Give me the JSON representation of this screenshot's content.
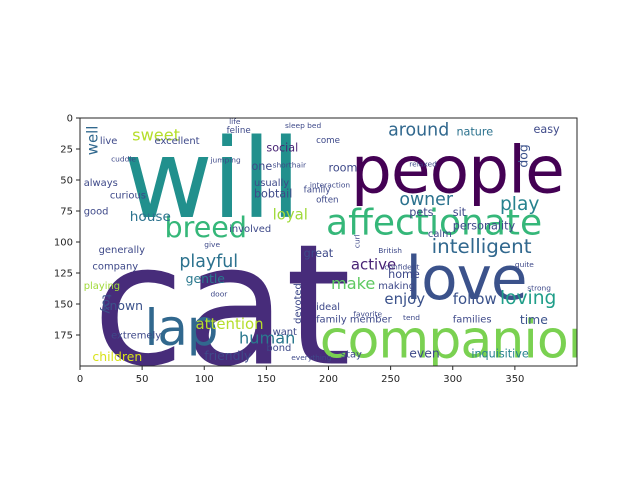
{
  "chart_data": {
    "type": "wordcloud",
    "title": "",
    "xlabel": "",
    "ylabel": "",
    "xlim": [
      0,
      400
    ],
    "ylim": [
      200,
      0
    ],
    "x_ticks": [
      0,
      50,
      100,
      150,
      200,
      250,
      300,
      350
    ],
    "y_ticks": [
      0,
      25,
      50,
      75,
      100,
      125,
      150,
      175
    ],
    "grid": false,
    "colormap": "viridis",
    "words": [
      {
        "text": "cat",
        "x": 10,
        "y": 198,
        "size": 135,
        "rot": 0,
        "color": "#472c7a"
      },
      {
        "text": "will",
        "x": 35,
        "y": 80,
        "size": 88,
        "rot": 0,
        "color": "#21908d"
      },
      {
        "text": "people",
        "x": 218,
        "y": 60,
        "size": 52,
        "rot": 0,
        "color": "#440154"
      },
      {
        "text": "companion",
        "x": 193,
        "y": 193,
        "size": 42,
        "rot": 0,
        "color": "#7ad151"
      },
      {
        "text": "love",
        "x": 262,
        "y": 146,
        "size": 48,
        "rot": 0,
        "color": "#3b528b"
      },
      {
        "text": "affectionate",
        "x": 198,
        "y": 94,
        "size": 29,
        "rot": 0,
        "color": "#35b779"
      },
      {
        "text": "lap",
        "x": 52,
        "y": 183,
        "size": 40,
        "rot": 0,
        "color": "#31688e"
      },
      {
        "text": "breed",
        "x": 68,
        "y": 96,
        "size": 23,
        "rot": 0,
        "color": "#35b779"
      },
      {
        "text": "intelligent",
        "x": 283,
        "y": 109,
        "size": 16,
        "rot": 0,
        "color": "#31688e"
      },
      {
        "text": "owner",
        "x": 257,
        "y": 70,
        "size": 14,
        "rot": 0,
        "color": "#2c728e"
      },
      {
        "text": "play",
        "x": 338,
        "y": 74,
        "size": 15,
        "rot": 0,
        "color": "#26828e"
      },
      {
        "text": "loving",
        "x": 338,
        "y": 150,
        "size": 15,
        "rot": 0,
        "color": "#1f9e89"
      },
      {
        "text": "around",
        "x": 248,
        "y": 14,
        "size": 14,
        "rot": 0,
        "color": "#31688e"
      },
      {
        "text": "sweet",
        "x": 42,
        "y": 18,
        "size": 13,
        "rot": 0,
        "color": "#b5de2b"
      },
      {
        "text": "human",
        "x": 128,
        "y": 182,
        "size": 13,
        "rot": 0,
        "color": "#2a788e"
      },
      {
        "text": "attention",
        "x": 93,
        "y": 170,
        "size": 12,
        "rot": 0,
        "color": "#b5de2b"
      },
      {
        "text": "playful",
        "x": 80,
        "y": 120,
        "size": 14,
        "rot": 0,
        "color": "#2c728e"
      },
      {
        "text": "make",
        "x": 202,
        "y": 138,
        "size": 13,
        "rot": 0,
        "color": "#5ec962"
      },
      {
        "text": "enjoy",
        "x": 245,
        "y": 150,
        "size": 12,
        "rot": 0,
        "color": "#3b528b"
      },
      {
        "text": "follow",
        "x": 300,
        "y": 150,
        "size": 12,
        "rot": 0,
        "color": "#3b528b"
      },
      {
        "text": "active",
        "x": 218,
        "y": 122,
        "size": 12,
        "rot": 0,
        "color": "#482475"
      },
      {
        "text": "loyal",
        "x": 155,
        "y": 82,
        "size": 12,
        "rot": 0,
        "color": "#a0da39"
      },
      {
        "text": "house",
        "x": 40,
        "y": 83,
        "size": 11,
        "rot": 0,
        "color": "#2c728e"
      },
      {
        "text": "gentle",
        "x": 85,
        "y": 133,
        "size": 10,
        "rot": 0,
        "color": "#2a788e"
      },
      {
        "text": "time",
        "x": 354,
        "y": 166,
        "size": 10,
        "rot": 0,
        "color": "#3b528b"
      },
      {
        "text": "children",
        "x": 10,
        "y": 196,
        "size": 10,
        "rot": 0,
        "color": "#d8e219"
      },
      {
        "text": "friendly",
        "x": 100,
        "y": 195,
        "size": 10,
        "rot": 0,
        "color": "#3e4989"
      },
      {
        "text": "even",
        "x": 265,
        "y": 193,
        "size": 10,
        "rot": 0,
        "color": "#3e4989"
      },
      {
        "text": "inquisitive",
        "x": 315,
        "y": 193,
        "size": 9,
        "rot": 0,
        "color": "#26828e"
      },
      {
        "text": "nature",
        "x": 303,
        "y": 14,
        "size": 9,
        "rot": 0,
        "color": "#2c728e"
      },
      {
        "text": "known",
        "x": 18,
        "y": 155,
        "size": 10,
        "rot": 0,
        "color": "#3b528b"
      },
      {
        "text": "toy",
        "x": 18,
        "y": 142,
        "size": 10,
        "rot": 90,
        "color": "#3b528b"
      },
      {
        "text": "well",
        "x": 14,
        "y": 30,
        "size": 12,
        "rot": 270,
        "color": "#31688e"
      },
      {
        "text": "dog",
        "x": 360,
        "y": 40,
        "size": 10,
        "rot": 270,
        "color": "#3b528b"
      },
      {
        "text": "easy",
        "x": 365,
        "y": 12,
        "size": 9,
        "rot": 0,
        "color": "#3e4989"
      },
      {
        "text": "room",
        "x": 200,
        "y": 43,
        "size": 9,
        "rot": 0,
        "color": "#3e4989"
      },
      {
        "text": "social",
        "x": 150,
        "y": 27,
        "size": 9,
        "rot": 0,
        "color": "#482475"
      },
      {
        "text": "one",
        "x": 138,
        "y": 42,
        "size": 9,
        "rot": 0,
        "color": "#3e4989"
      },
      {
        "text": "bobtail",
        "x": 140,
        "y": 64,
        "size": 9,
        "rot": 0,
        "color": "#3e4989"
      },
      {
        "text": "usually",
        "x": 140,
        "y": 55,
        "size": 8,
        "rot": 0,
        "color": "#3e4989"
      },
      {
        "text": "curious",
        "x": 24,
        "y": 65,
        "size": 8,
        "rot": 0,
        "color": "#3e4989"
      },
      {
        "text": "always",
        "x": 3,
        "y": 55,
        "size": 8,
        "rot": 0,
        "color": "#3e4989"
      },
      {
        "text": "live",
        "x": 16,
        "y": 21,
        "size": 8,
        "rot": 0,
        "color": "#3e4989"
      },
      {
        "text": "excellent",
        "x": 60,
        "y": 21,
        "size": 8,
        "rot": 0,
        "color": "#3e4989"
      },
      {
        "text": "good",
        "x": 3,
        "y": 78,
        "size": 8,
        "rot": 0,
        "color": "#3e4989"
      },
      {
        "text": "generally",
        "x": 15,
        "y": 109,
        "size": 8,
        "rot": 0,
        "color": "#3e4989"
      },
      {
        "text": "company",
        "x": 10,
        "y": 122,
        "size": 8,
        "rot": 0,
        "color": "#3e4989"
      },
      {
        "text": "playing",
        "x": 3,
        "y": 138,
        "size": 8,
        "rot": 0,
        "color": "#a0da39"
      },
      {
        "text": "extremely",
        "x": 25,
        "y": 178,
        "size": 8,
        "rot": 0,
        "color": "#3e4989"
      },
      {
        "text": "devoted",
        "x": 178,
        "y": 166,
        "size": 8,
        "rot": 270,
        "color": "#3e4989"
      },
      {
        "text": "great",
        "x": 180,
        "y": 112,
        "size": 9,
        "rot": 0,
        "color": "#3e4989"
      },
      {
        "text": "pets",
        "x": 265,
        "y": 79,
        "size": 9,
        "rot": 0,
        "color": "#3e4989"
      },
      {
        "text": "sit",
        "x": 300,
        "y": 79,
        "size": 9,
        "rot": 0,
        "color": "#3e4989"
      },
      {
        "text": "personality",
        "x": 300,
        "y": 90,
        "size": 9,
        "rot": 0,
        "color": "#3e4989"
      },
      {
        "text": "calm",
        "x": 280,
        "y": 96,
        "size": 8,
        "rot": 0,
        "color": "#3e4989"
      },
      {
        "text": "home",
        "x": 248,
        "y": 129,
        "size": 9,
        "rot": 0,
        "color": "#3e4989"
      },
      {
        "text": "making",
        "x": 240,
        "y": 138,
        "size": 8,
        "rot": 0,
        "color": "#3e4989"
      },
      {
        "text": "family member",
        "x": 190,
        "y": 165,
        "size": 8,
        "rot": 0,
        "color": "#3e4989"
      },
      {
        "text": "ideal",
        "x": 190,
        "y": 155,
        "size": 8,
        "rot": 0,
        "color": "#3e4989"
      },
      {
        "text": "families",
        "x": 300,
        "y": 165,
        "size": 8,
        "rot": 0,
        "color": "#3e4989"
      },
      {
        "text": "bond",
        "x": 150,
        "y": 188,
        "size": 8,
        "rot": 0,
        "color": "#3e4989"
      },
      {
        "text": "stay",
        "x": 210,
        "y": 193,
        "size": 8,
        "rot": 0,
        "color": "#3e4989"
      },
      {
        "text": "want",
        "x": 155,
        "y": 175,
        "size": 8,
        "rot": 0,
        "color": "#3e4989"
      },
      {
        "text": "involved",
        "x": 120,
        "y": 92,
        "size": 8,
        "rot": 0,
        "color": "#3e4989"
      },
      {
        "text": "come",
        "x": 190,
        "y": 20,
        "size": 7,
        "rot": 0,
        "color": "#3e4989"
      },
      {
        "text": "family",
        "x": 180,
        "y": 60,
        "size": 7,
        "rot": 0,
        "color": "#3e4989"
      },
      {
        "text": "often",
        "x": 190,
        "y": 68,
        "size": 7,
        "rot": 0,
        "color": "#3e4989"
      },
      {
        "text": "feline",
        "x": 118,
        "y": 12,
        "size": 7,
        "rot": 0,
        "color": "#3e4989"
      },
      {
        "text": "sleep bed",
        "x": 165,
        "y": 8,
        "size": 6,
        "rot": 0,
        "color": "#3e4989"
      },
      {
        "text": "relaxed",
        "x": 265,
        "y": 39,
        "size": 6,
        "rot": 0,
        "color": "#3e4989"
      },
      {
        "text": "shorthair",
        "x": 155,
        "y": 40,
        "size": 6,
        "rot": 0,
        "color": "#3e4989"
      },
      {
        "text": "interaction",
        "x": 185,
        "y": 56,
        "size": 6,
        "rot": 0,
        "color": "#3e4989"
      },
      {
        "text": "confident",
        "x": 245,
        "y": 122,
        "size": 6,
        "rot": 0,
        "color": "#3e4989"
      },
      {
        "text": "quite",
        "x": 350,
        "y": 120,
        "size": 6,
        "rot": 0,
        "color": "#3e4989"
      },
      {
        "text": "strong",
        "x": 360,
        "y": 139,
        "size": 6,
        "rot": 0,
        "color": "#3e4989"
      },
      {
        "text": "favorite",
        "x": 220,
        "y": 160,
        "size": 6,
        "rot": 0,
        "color": "#3e4989"
      },
      {
        "text": "everything",
        "x": 170,
        "y": 195,
        "size": 6,
        "rot": 0,
        "color": "#3e4989"
      },
      {
        "text": "curl",
        "x": 225,
        "y": 105,
        "size": 6,
        "rot": 270,
        "color": "#3e4989"
      },
      {
        "text": "British",
        "x": 240,
        "y": 109,
        "size": 6,
        "rot": 0,
        "color": "#3e4989"
      },
      {
        "text": "life",
        "x": 120,
        "y": 5,
        "size": 6,
        "rot": 0,
        "color": "#3e4989"
      },
      {
        "text": "cuddle",
        "x": 25,
        "y": 35,
        "size": 6,
        "rot": 0,
        "color": "#3e4989"
      },
      {
        "text": "jumping",
        "x": 105,
        "y": 36,
        "size": 6,
        "rot": 0,
        "color": "#3e4989"
      },
      {
        "text": "tend",
        "x": 260,
        "y": 163,
        "size": 6,
        "rot": 0,
        "color": "#3e4989"
      },
      {
        "text": "door",
        "x": 105,
        "y": 144,
        "size": 6,
        "rot": 0,
        "color": "#3e4989"
      },
      {
        "text": "give",
        "x": 100,
        "y": 104,
        "size": 6,
        "rot": 0,
        "color": "#3e4989"
      }
    ]
  }
}
